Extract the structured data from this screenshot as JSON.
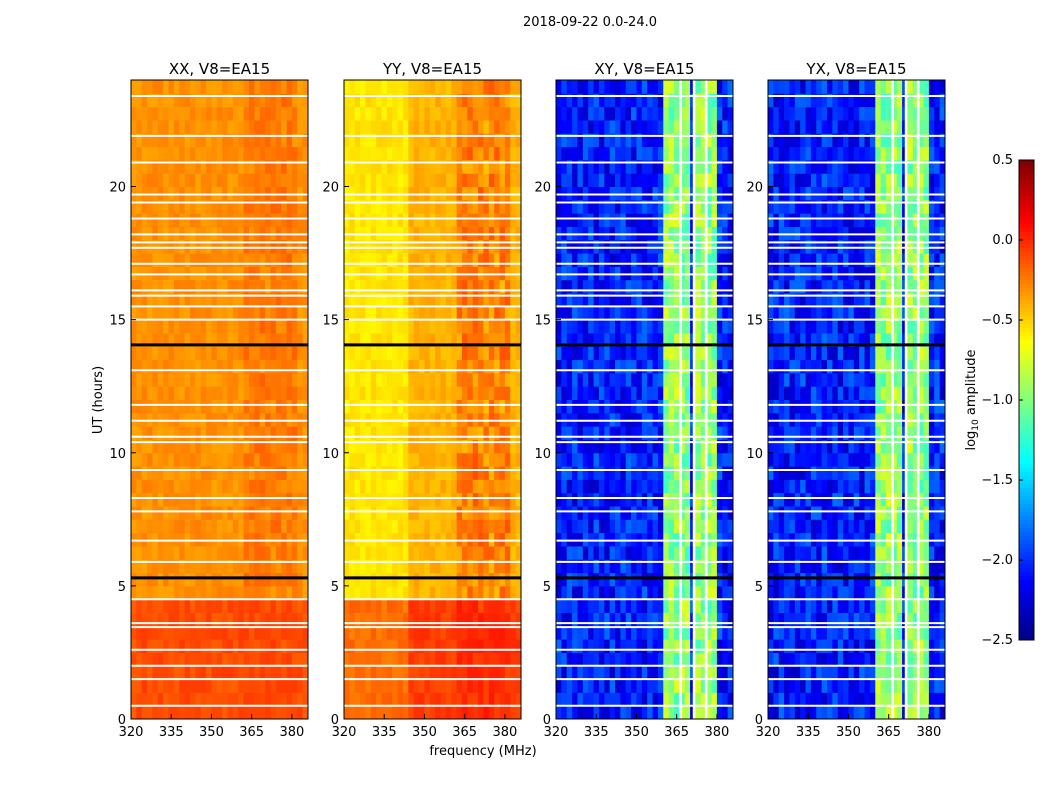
{
  "chart_data": {
    "type": "heatmap",
    "title": "2018-09-22 0.0-24.0",
    "ylabel": "UT (hours)",
    "xlabel": "frequency (MHz)",
    "xlim": [
      320,
      386
    ],
    "ylim": [
      0,
      24
    ],
    "xticks": [
      320,
      335,
      350,
      365,
      380
    ],
    "yticks": [
      0,
      5,
      10,
      15,
      20
    ],
    "colorbar": {
      "label_prefix": "log",
      "label_sub": "10",
      "label_suffix": " amplitude",
      "range": [
        -2.5,
        0.5
      ],
      "ticks": [
        "0.5",
        "0.0",
        "−0.5",
        "−1.0",
        "−1.5",
        "−2.0",
        "−2.5"
      ],
      "tick_values": [
        0.5,
        0.0,
        -0.5,
        -1.0,
        -1.5,
        -2.0,
        -2.5
      ],
      "colormap": "jet"
    },
    "flagged_hours": [
      23.4,
      21.9,
      20.9,
      19.7,
      19.4,
      18.8,
      18.2,
      17.9,
      17.7,
      17.1,
      16.7,
      16.1,
      15.9,
      15.5,
      15.0,
      13.1,
      11.8,
      11.2,
      10.6,
      10.4,
      9.35,
      8.3,
      7.8,
      6.7,
      5.9,
      4.5,
      3.6,
      3.45,
      2.6,
      2.0,
      1.5,
      0.5
    ],
    "black_lines_hours": [
      14.05,
      5.3
    ],
    "rfi_bands_mhz": [
      [
        361,
        366
      ],
      [
        367,
        371
      ],
      [
        372,
        375.5
      ],
      [
        376.5,
        380
      ]
    ],
    "panels": [
      {
        "title": "XX, V8=EA15",
        "base_level": -0.3,
        "low_time_level": -0.1,
        "rfi_level": -0.05
      },
      {
        "title": "YY, V8=EA15",
        "base_level": -0.45,
        "low_time_level": -0.1,
        "rfi_level": 0.15
      },
      {
        "title": "XY, V8=EA15",
        "base_level": -2.3,
        "low_time_level": -2.3,
        "rfi_level": -0.95
      },
      {
        "title": "YX, V8=EA15",
        "base_level": -2.3,
        "low_time_level": -2.3,
        "rfi_level": -0.95
      }
    ]
  }
}
